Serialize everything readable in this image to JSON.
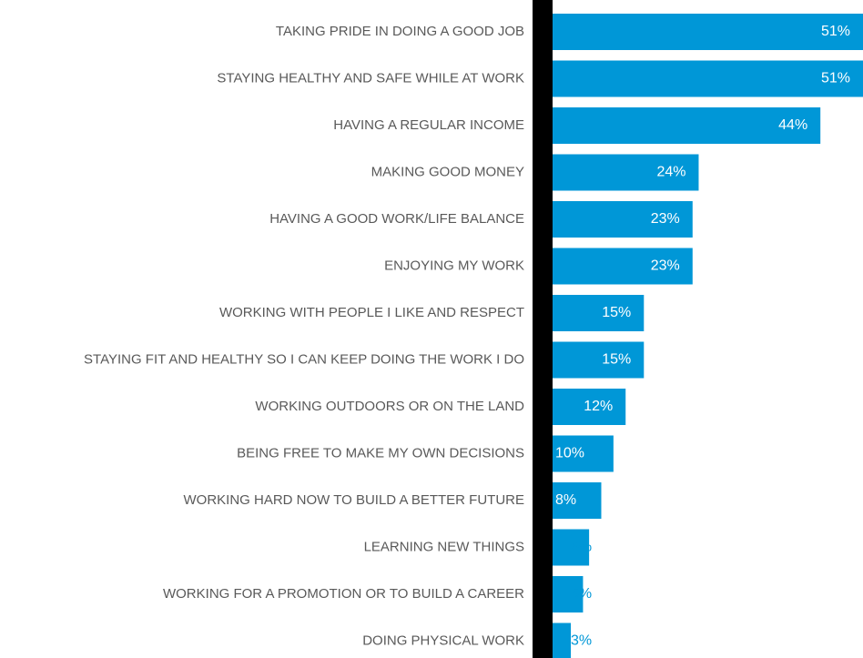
{
  "chart_data": {
    "type": "barh",
    "categories": [
      "TAKING PRIDE IN DOING A GOOD JOB",
      "STAYING HEALTHY AND SAFE WHILE AT WORK",
      "HAVING A REGULAR INCOME",
      "MAKING GOOD MONEY",
      "HAVING A GOOD WORK/LIFE BALANCE",
      "ENJOYING MY WORK",
      "WORKING WITH PEOPLE I LIKE AND RESPECT",
      "STAYING FIT AND HEALTHY SO I CAN KEEP DOING THE WORK I DO",
      "WORKING OUTDOORS OR ON THE LAND",
      "BEING FREE TO MAKE MY OWN DECISIONS",
      "WORKING HARD NOW TO BUILD A BETTER FUTURE",
      "LEARNING NEW THINGS",
      "WORKING FOR A PROMOTION OR TO BUILD A CAREER",
      "DOING PHYSICAL WORK"
    ],
    "values": [
      51,
      51,
      44,
      24,
      23,
      23,
      15,
      15,
      12,
      10,
      8,
      6,
      5,
      3
    ],
    "value_labels": [
      "51%",
      "51%",
      "44%",
      "24%",
      "23%",
      "23%",
      "15%",
      "15%",
      "12%",
      "10%",
      "8%",
      "6%",
      "5%",
      "3%"
    ],
    "color": "#0097d7"
  }
}
